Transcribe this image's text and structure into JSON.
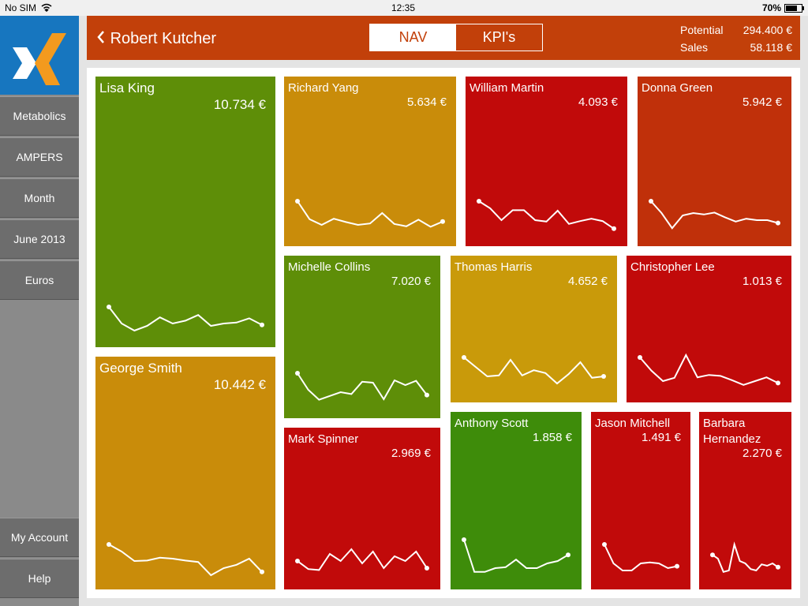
{
  "status_bar": {
    "carrier": "No SIM",
    "time": "12:35",
    "battery": "70%"
  },
  "sidebar": {
    "items": [
      "Metabolics",
      "AMPERS",
      "Month",
      "June 2013",
      "Euros"
    ],
    "bottom_items": [
      "My Account",
      "Help"
    ]
  },
  "header": {
    "back_title": "Robert Kutcher",
    "tabs": [
      "NAV",
      "KPI's"
    ],
    "active_tab": 0,
    "stats": [
      {
        "label": "Potential",
        "value": "294.400 €"
      },
      {
        "label": "Sales",
        "value": "58.118 €"
      }
    ]
  },
  "tiles": [
    {
      "name": "Lisa King",
      "value": "10.734 €",
      "color": "#5e8e08",
      "trend": [
        60,
        25,
        10,
        20,
        38,
        25,
        31,
        43,
        20,
        25,
        27,
        36,
        22
      ]
    },
    {
      "name": "George Smith",
      "value": "10.442 €",
      "color": "#c98c0a",
      "trend": [
        70,
        55,
        35,
        36,
        42,
        40,
        36,
        33,
        5,
        20,
        27,
        40,
        12
      ]
    },
    {
      "name": "Richard Yang",
      "value": "5.634 €",
      "color": "#c98c0a",
      "trend": [
        70,
        32,
        20,
        33,
        26,
        20,
        23,
        45,
        22,
        17,
        31,
        16,
        27
      ]
    },
    {
      "name": "William Martin",
      "value": "4.093 €",
      "color": "#c10a0a",
      "trend": [
        70,
        55,
        30,
        51,
        51,
        30,
        27,
        50,
        22,
        28,
        33,
        28,
        12
      ]
    },
    {
      "name": "Donna Green",
      "value": "5.942 €",
      "color": "#c0300a",
      "trend": [
        70,
        45,
        13,
        40,
        45,
        42,
        46,
        36,
        27,
        33,
        30,
        30,
        24
      ]
    },
    {
      "name": "Michelle Collins",
      "value": "7.020 €",
      "color": "#5e8e08",
      "trend": [
        70,
        35,
        14,
        22,
        30,
        26,
        52,
        50,
        15,
        55,
        45,
        54,
        24
      ]
    },
    {
      "name": "Thomas Harris",
      "value": "4.652 €",
      "color": "#c99a0a",
      "trend": [
        70,
        50,
        30,
        32,
        65,
        32,
        43,
        37,
        15,
        35,
        60,
        27,
        30
      ]
    },
    {
      "name": "Christopher Lee",
      "value": "1.013 €",
      "color": "#c10a0a",
      "trend": [
        70,
        42,
        20,
        27,
        75,
        28,
        33,
        31,
        22,
        12,
        20,
        28,
        16
      ]
    },
    {
      "name": "Mark Spinner",
      "value": "2.969 €",
      "color": "#c10a0a",
      "trend": [
        35,
        18,
        16,
        50,
        35,
        60,
        30,
        55,
        20,
        45,
        35,
        55,
        20
      ]
    },
    {
      "name": "Anthony Scott",
      "value": "1.858 €",
      "color": "#3e8c0a",
      "trend": [
        80,
        12,
        12,
        20,
        22,
        38,
        20,
        20,
        30,
        35,
        48
      ]
    },
    {
      "name": "Jason Mitchell",
      "value": "1.491 €",
      "color": "#c10a0a",
      "trend": [
        70,
        30,
        15,
        15,
        30,
        32,
        30,
        20,
        24
      ]
    },
    {
      "name": "Barbara Hernandez",
      "value": "2.270 €",
      "color": "#c10a0a",
      "trend": [
        48,
        40,
        12,
        15,
        70,
        35,
        30,
        18,
        15,
        28,
        25,
        30,
        22
      ]
    }
  ]
}
